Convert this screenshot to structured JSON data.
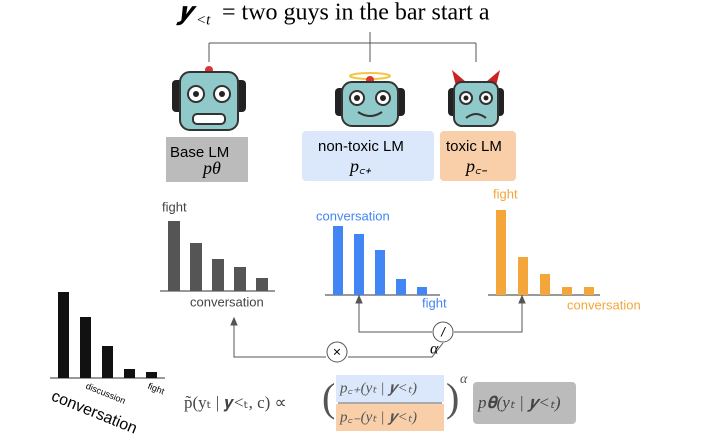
{
  "title": {
    "variable": "𝒚",
    "subscript": "<t",
    "text": "= two guys in the bar start a"
  },
  "models": [
    {
      "name": "Base LM",
      "symbol": "pθ"
    },
    {
      "name": "non-toxic LM",
      "symbol": "p꜀₊"
    },
    {
      "name": "toxic LM",
      "symbol": "p꜀₋"
    }
  ],
  "panels": [
    {
      "color": "#555555",
      "top_label": "fight",
      "bottom_label": "conversation",
      "bars": [
        70,
        48,
        32,
        24,
        13
      ]
    },
    {
      "color": "#4285f4",
      "top_label": "conversation",
      "bottom_label": "fight",
      "bars": [
        69,
        61,
        45,
        16,
        8
      ]
    },
    {
      "color": "#f4a63a",
      "top_label": "fight",
      "bottom_label": "conversation",
      "bars": [
        85,
        38,
        21,
        8,
        8
      ]
    },
    {
      "color": "#111111",
      "labels": [
        "conversation",
        "discussion",
        "fight"
      ],
      "bars": [
        86,
        61,
        32,
        9,
        6
      ]
    }
  ],
  "operators": {
    "multiply": "×",
    "divide": "/",
    "exponent": "α"
  },
  "formula": {
    "lhs": "p̃(yₜ | 𝒚<ₜ, c) ∝",
    "numerator": "p꜀₊(yₜ | 𝒚<ₜ)",
    "denominator": "p꜀₋(yₜ | 𝒚<ₜ)",
    "exponent": "α",
    "rhs": "p𝛉(yₜ | 𝒚<ₜ)"
  }
}
